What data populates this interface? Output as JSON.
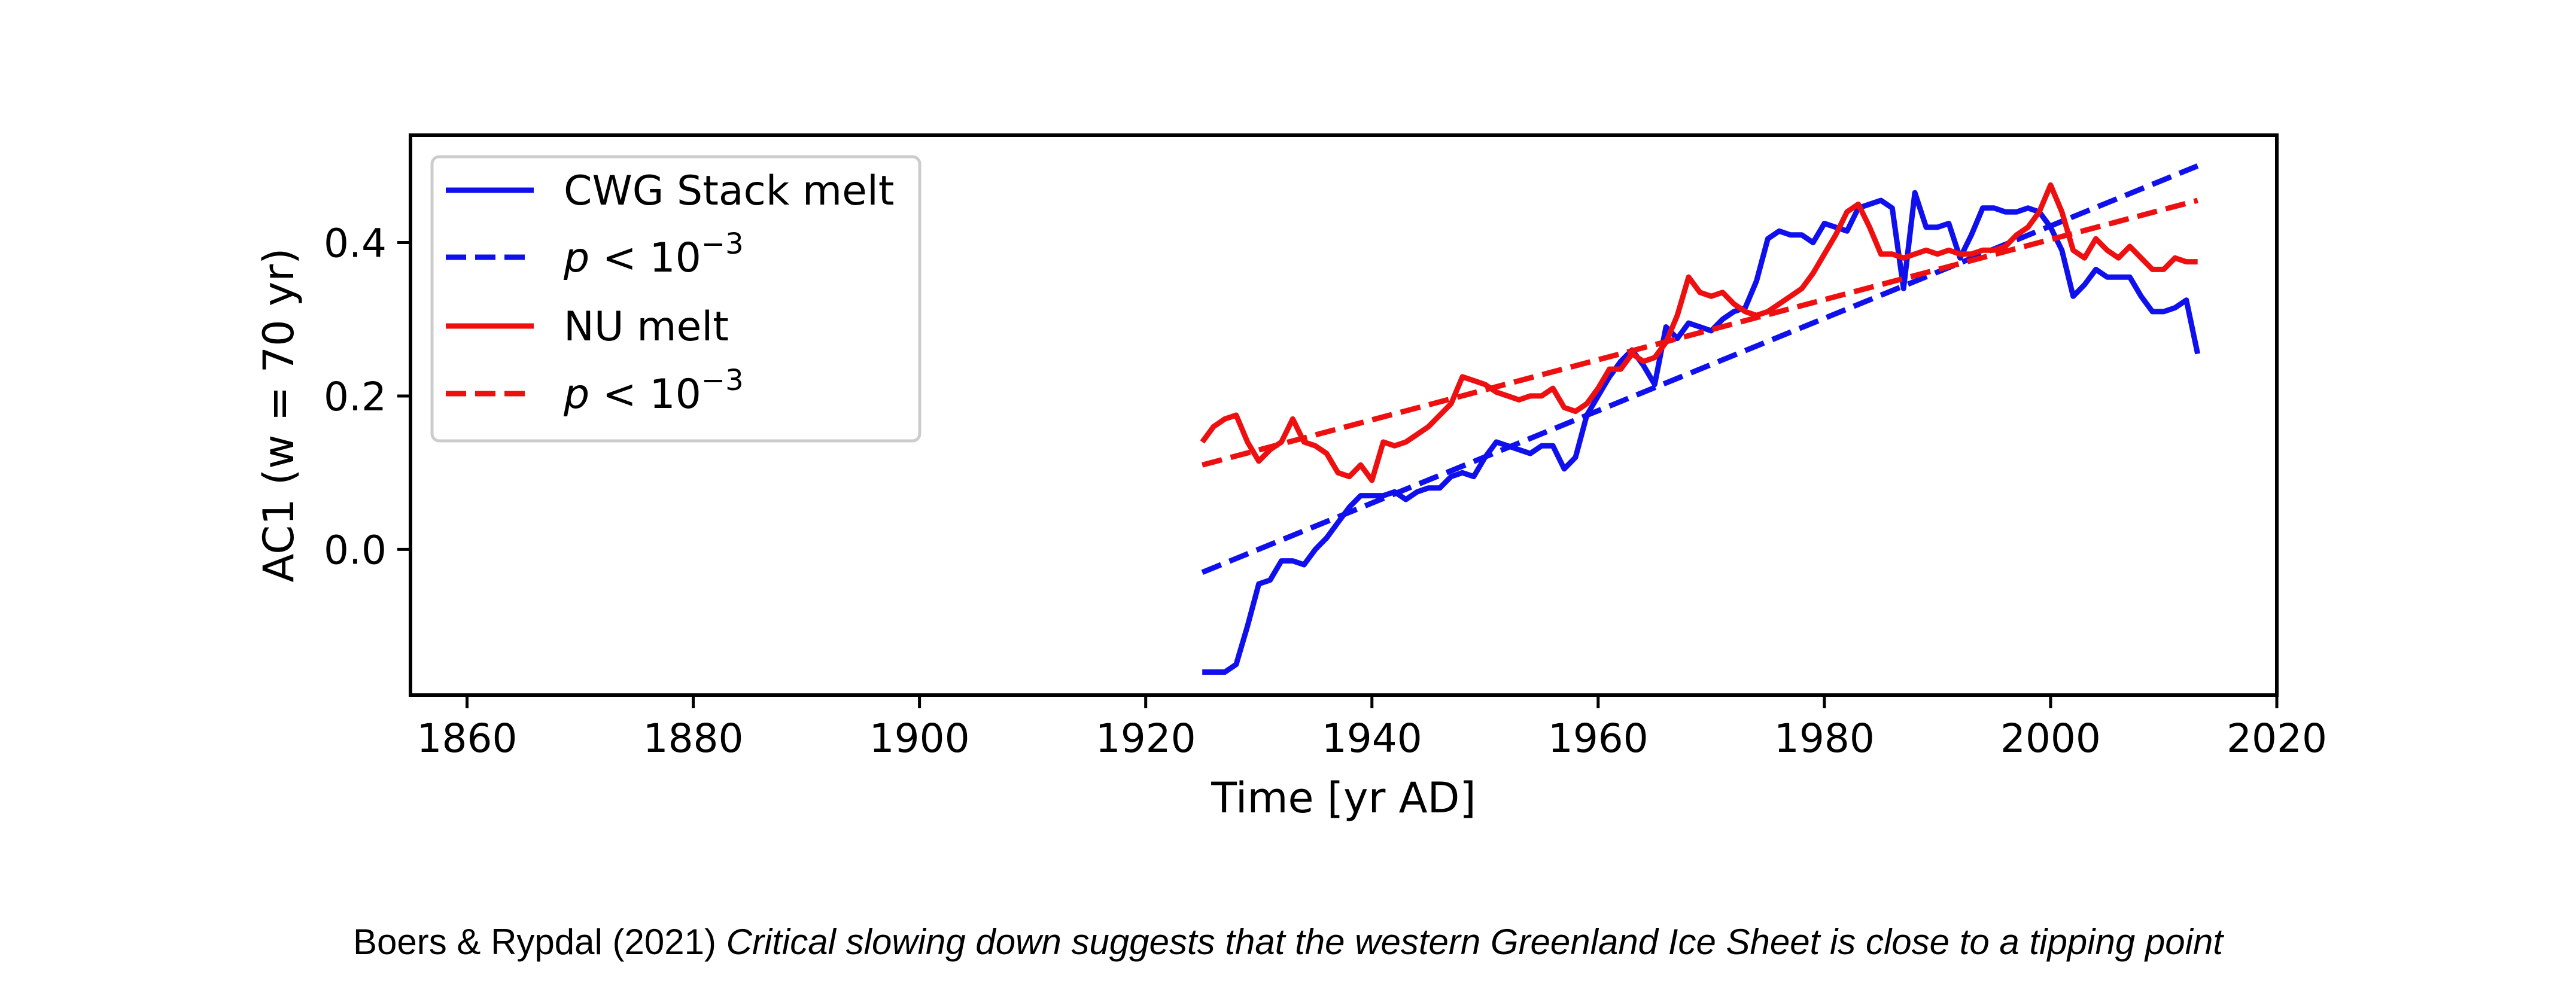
{
  "chart_data": {
    "type": "line",
    "xlabel": "Time [yr AD]",
    "ylabel": "AC1 (w = 70 yr)",
    "xlim": [
      1855,
      2020
    ],
    "ylim": [
      -0.19,
      0.54
    ],
    "xticks": [
      1860,
      1880,
      1900,
      1920,
      1940,
      1960,
      1980,
      2000,
      2020
    ],
    "xtick_labels": [
      "1860",
      "1880",
      "1900",
      "1920",
      "1940",
      "1960",
      "1980",
      "2000",
      "2020"
    ],
    "yticks": [
      0.0,
      0.2,
      0.4
    ],
    "ytick_labels": [
      "0.0",
      "0.2",
      "0.4"
    ],
    "grid": false,
    "legend_position": "top-left",
    "series": [
      {
        "name": "CWG Stack melt",
        "color": "#1010ee",
        "style": "solid",
        "x": [
          1925,
          1926,
          1927,
          1928,
          1929,
          1930,
          1931,
          1932,
          1933,
          1934,
          1935,
          1936,
          1937,
          1938,
          1939,
          1940,
          1941,
          1942,
          1943,
          1944,
          1945,
          1946,
          1947,
          1948,
          1949,
          1950,
          1951,
          1952,
          1953,
          1954,
          1955,
          1956,
          1957,
          1958,
          1959,
          1960,
          1961,
          1962,
          1963,
          1964,
          1965,
          1966,
          1967,
          1968,
          1969,
          1970,
          1971,
          1972,
          1973,
          1974,
          1975,
          1976,
          1977,
          1978,
          1979,
          1980,
          1981,
          1982,
          1983,
          1984,
          1985,
          1986,
          1987,
          1988,
          1989,
          1990,
          1991,
          1992,
          1993,
          1994,
          1995,
          1996,
          1997,
          1998,
          1999,
          2000,
          2001,
          2002,
          2003,
          2004,
          2005,
          2006,
          2007,
          2008,
          2009,
          2010,
          2011,
          2012,
          2013
        ],
        "y": [
          -0.16,
          -0.16,
          -0.16,
          -0.15,
          -0.1,
          -0.045,
          -0.04,
          -0.015,
          -0.015,
          -0.02,
          0.0,
          0.015,
          0.035,
          0.055,
          0.07,
          0.07,
          0.07,
          0.075,
          0.065,
          0.075,
          0.08,
          0.08,
          0.095,
          0.1,
          0.095,
          0.12,
          0.14,
          0.135,
          0.13,
          0.125,
          0.135,
          0.135,
          0.105,
          0.12,
          0.175,
          0.2,
          0.225,
          0.245,
          0.26,
          0.24,
          0.215,
          0.29,
          0.275,
          0.295,
          0.29,
          0.285,
          0.3,
          0.31,
          0.315,
          0.35,
          0.405,
          0.415,
          0.41,
          0.41,
          0.4,
          0.425,
          0.42,
          0.415,
          0.445,
          0.45,
          0.455,
          0.445,
          0.34,
          0.465,
          0.42,
          0.42,
          0.425,
          0.38,
          0.41,
          0.445,
          0.445,
          0.44,
          0.44,
          0.445,
          0.44,
          0.42,
          0.39,
          0.33,
          0.345,
          0.365,
          0.355,
          0.355,
          0.355,
          0.33,
          0.31,
          0.31,
          0.315,
          0.325,
          0.255
        ]
      },
      {
        "name": "p < 10⁻³",
        "color": "#1010ee",
        "style": "dashed",
        "x": [
          1925,
          2013
        ],
        "y": [
          -0.03,
          0.5
        ]
      },
      {
        "name": "NU melt",
        "color": "#ee1010",
        "style": "solid",
        "x": [
          1925,
          1926,
          1927,
          1928,
          1929,
          1930,
          1931,
          1932,
          1933,
          1934,
          1935,
          1936,
          1937,
          1938,
          1939,
          1940,
          1941,
          1942,
          1943,
          1944,
          1945,
          1946,
          1947,
          1948,
          1949,
          1950,
          1951,
          1952,
          1953,
          1954,
          1955,
          1956,
          1957,
          1958,
          1959,
          1960,
          1961,
          1962,
          1963,
          1964,
          1965,
          1966,
          1967,
          1968,
          1969,
          1970,
          1971,
          1972,
          1973,
          1974,
          1975,
          1976,
          1977,
          1978,
          1979,
          1980,
          1981,
          1982,
          1983,
          1984,
          1985,
          1986,
          1987,
          1988,
          1989,
          1990,
          1991,
          1992,
          1993,
          1994,
          1995,
          1996,
          1997,
          1998,
          1999,
          2000,
          2001,
          2002,
          2003,
          2004,
          2005,
          2006,
          2007,
          2008,
          2009,
          2010,
          2011,
          2012,
          2013
        ],
        "y": [
          0.14,
          0.16,
          0.17,
          0.175,
          0.14,
          0.115,
          0.13,
          0.14,
          0.17,
          0.14,
          0.135,
          0.125,
          0.1,
          0.095,
          0.11,
          0.09,
          0.14,
          0.135,
          0.14,
          0.15,
          0.16,
          0.175,
          0.19,
          0.225,
          0.22,
          0.215,
          0.205,
          0.2,
          0.195,
          0.2,
          0.2,
          0.21,
          0.185,
          0.18,
          0.19,
          0.21,
          0.235,
          0.235,
          0.255,
          0.245,
          0.25,
          0.27,
          0.305,
          0.355,
          0.335,
          0.33,
          0.335,
          0.32,
          0.31,
          0.305,
          0.31,
          0.32,
          0.33,
          0.34,
          0.36,
          0.385,
          0.41,
          0.44,
          0.45,
          0.42,
          0.385,
          0.385,
          0.38,
          0.385,
          0.39,
          0.385,
          0.39,
          0.385,
          0.385,
          0.39,
          0.39,
          0.395,
          0.41,
          0.42,
          0.44,
          0.475,
          0.44,
          0.39,
          0.38,
          0.405,
          0.39,
          0.38,
          0.395,
          0.38,
          0.365,
          0.365,
          0.38,
          0.375,
          0.375
        ]
      },
      {
        "name": "p < 10⁻³",
        "color": "#ee1010",
        "style": "dashed",
        "x": [
          1925,
          2013
        ],
        "y": [
          0.11,
          0.455
        ]
      }
    ]
  },
  "caption": {
    "authors": "Boers & Rypdal (2021)",
    "title": "Critical slowing down suggests that the western Greenland Ice Sheet is close to a tipping point"
  }
}
